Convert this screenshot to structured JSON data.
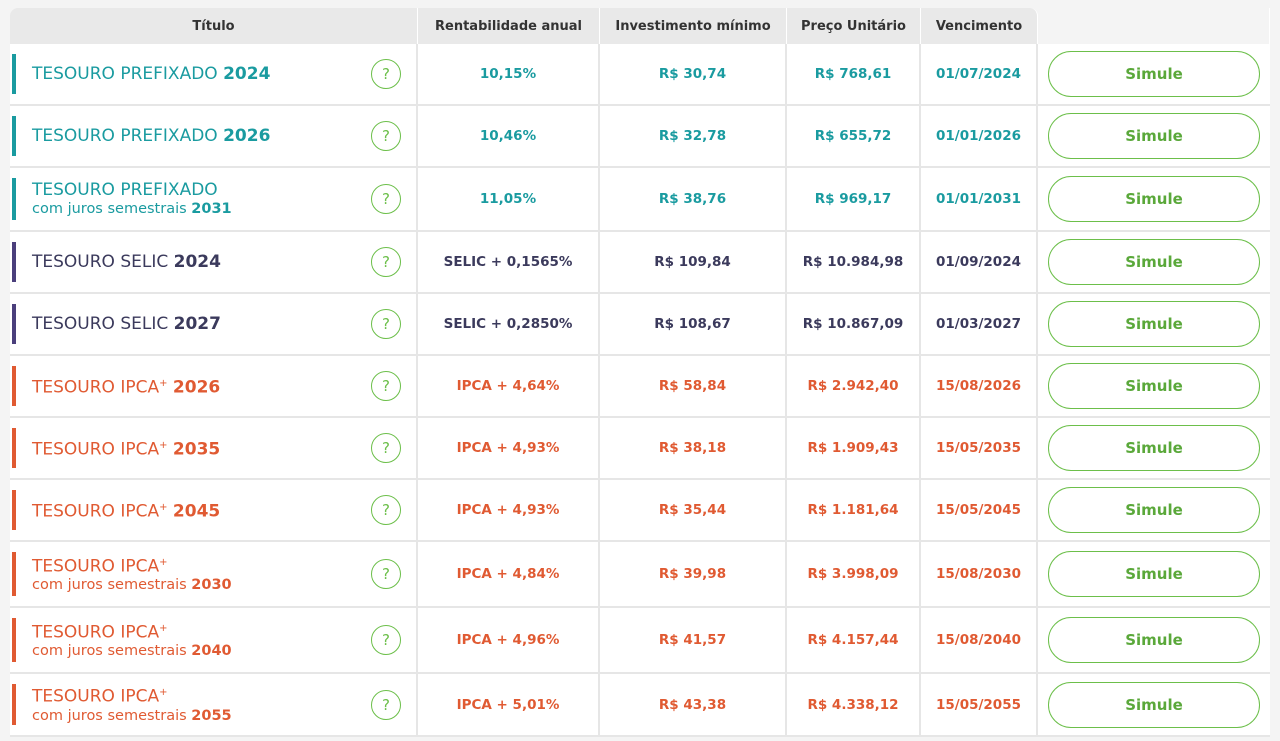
{
  "header": {
    "columns": [
      "Título",
      "Rentabilidade anual",
      "Investimento mínimo",
      "Preço Unitário",
      "Vencimento"
    ]
  },
  "help_icon": "?",
  "button": "Simule",
  "rows": [
    {
      "name": "TESOURO PREFIXADO",
      "year": "2024",
      "rate": "10,15%",
      "min": "R$ 30,74",
      "price": "R$ 768,61",
      "date": "01/07/2024",
      "color": "#1a9ba0"
    },
    {
      "name": "TESOURO PREFIXADO",
      "year": "2026",
      "rate": "10,46%",
      "min": "R$ 32,78",
      "price": "R$ 655,72",
      "date": "01/01/2026",
      "color": "#1a9ba0"
    },
    {
      "name": "TESOURO PREFIXADO",
      "sub": "com juros semestrais",
      "year": "2031",
      "rate": "11,05%",
      "min": "R$ 38,76",
      "price": "R$ 969,17",
      "date": "01/01/2031",
      "color": "#1a9ba0"
    },
    {
      "name": "TESOURO SELIC",
      "year": "2024",
      "rate": "SELIC + 0,1565%",
      "min": "R$ 109,84",
      "price": "R$ 10.984,98",
      "date": "01/09/2024",
      "color": "#3b3a5c",
      "bar": "#4b3f7c"
    },
    {
      "name": "TESOURO SELIC",
      "year": "2027",
      "rate": "SELIC + 0,2850%",
      "min": "R$ 108,67",
      "price": "R$ 10.867,09",
      "date": "01/03/2027",
      "color": "#3b3a5c",
      "bar": "#4b3f7c"
    },
    {
      "name": "TESOURO IPCA",
      "sup": "+",
      "year": "2026",
      "rate": "IPCA + 4,64%",
      "min": "R$ 58,84",
      "price": "R$ 2.942,40",
      "date": "15/08/2026",
      "color": "#e05a32"
    },
    {
      "name": "TESOURO IPCA",
      "sup": "+",
      "year": "2035",
      "rate": "IPCA + 4,93%",
      "min": "R$ 38,18",
      "price": "R$ 1.909,43",
      "date": "15/05/2035",
      "color": "#e05a32"
    },
    {
      "name": "TESOURO IPCA",
      "sup": "+",
      "year": "2045",
      "rate": "IPCA + 4,93%",
      "min": "R$ 35,44",
      "price": "R$ 1.181,64",
      "date": "15/05/2045",
      "color": "#e05a32"
    },
    {
      "name": "TESOURO IPCA",
      "sup": "+",
      "sub": "com juros semestrais",
      "year": "2030",
      "rate": "IPCA + 4,84%",
      "min": "R$ 39,98",
      "price": "R$ 3.998,09",
      "date": "15/08/2030",
      "color": "#e05a32"
    },
    {
      "name": "TESOURO IPCA",
      "sup": "+",
      "sub": "com juros semestrais",
      "year": "2040",
      "rate": "IPCA + 4,96%",
      "min": "R$ 41,57",
      "price": "R$ 4.157,44",
      "date": "15/08/2040",
      "color": "#e05a32"
    },
    {
      "name": "TESOURO IPCA",
      "sup": "+",
      "sub": "com juros semestrais",
      "year": "2055",
      "rate": "IPCA + 5,01%",
      "min": "R$ 43,38",
      "price": "R$ 4.338,12",
      "date": "15/05/2055",
      "color": "#e05a32"
    }
  ]
}
